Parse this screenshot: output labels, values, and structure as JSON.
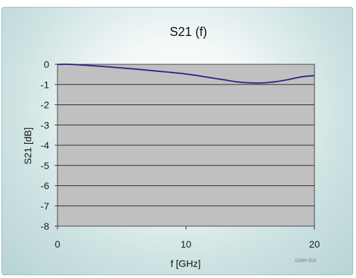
{
  "colors": {
    "plot_bg": "#c0c0c0",
    "grid": "#2b2b2b",
    "series": "#2a2a8c"
  },
  "chart_data": {
    "type": "line",
    "title": "S21 (f)",
    "xlabel": "f [GHz]",
    "ylabel": "S21 [dB]",
    "xlim": [
      0,
      20
    ],
    "ylim": [
      -8,
      0
    ],
    "x_ticks": [
      0,
      10,
      20
    ],
    "y_ticks": [
      0,
      -1,
      -2,
      -3,
      -4,
      -5,
      -6,
      -7,
      -8
    ],
    "grid": true,
    "series": [
      {
        "x": [
          0,
          1,
          2,
          3,
          4,
          5,
          6,
          7,
          8,
          9,
          10,
          11,
          12,
          13,
          14,
          15,
          16,
          17,
          18,
          19,
          20
        ],
        "values": [
          0,
          0,
          -0.04,
          -0.08,
          -0.13,
          -0.18,
          -0.23,
          -0.29,
          -0.35,
          -0.41,
          -0.48,
          -0.57,
          -0.67,
          -0.77,
          -0.87,
          -0.92,
          -0.92,
          -0.86,
          -0.75,
          -0.62,
          -0.56
        ]
      }
    ],
    "annotation": "GWH 502"
  }
}
